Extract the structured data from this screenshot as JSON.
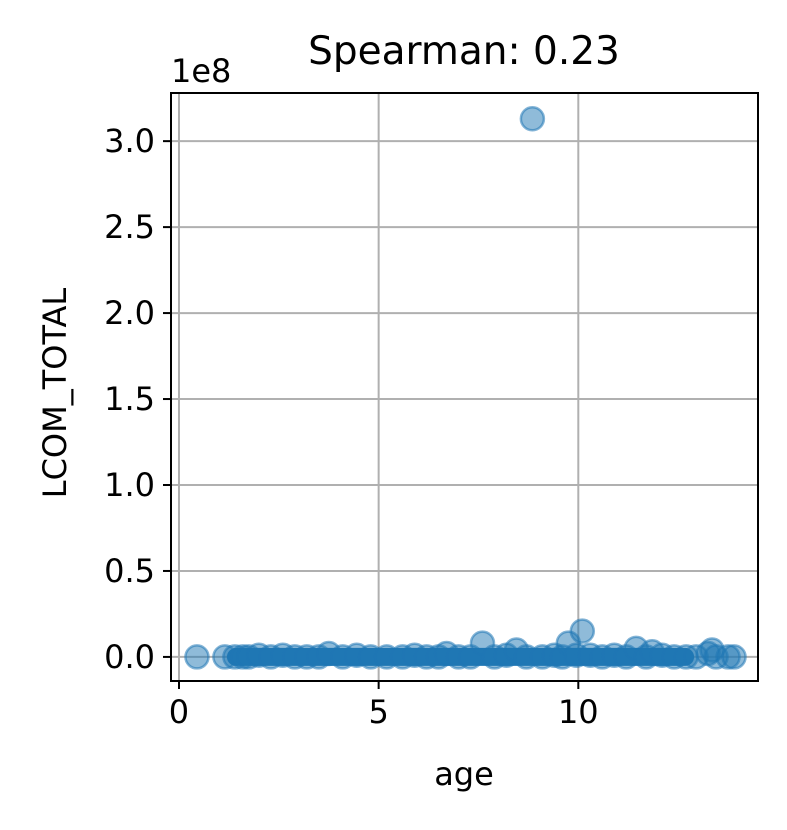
{
  "chart_data": {
    "type": "scatter",
    "title": "Spearman: 0.23",
    "xlabel": "age",
    "ylabel": "LCOM_TOTAL",
    "y_offset_text": "1e8",
    "xlim": [
      -0.2,
      14.5
    ],
    "ylim": [
      -0.14,
      3.28
    ],
    "xticks": [
      0,
      5,
      10
    ],
    "yticks": [
      0.0,
      0.5,
      1.0,
      1.5,
      2.0,
      2.5,
      3.0
    ],
    "xtick_labels": [
      "0",
      "5",
      "10"
    ],
    "ytick_labels": [
      "0.0",
      "0.5",
      "1.0",
      "1.5",
      "2.0",
      "2.5",
      "3.0"
    ],
    "grid": true,
    "color": "#1f77b4",
    "alpha": 0.5,
    "dense_band": {
      "x_start": 1.2,
      "x_end": 12.9,
      "y": 0.0
    },
    "series": [
      {
        "points": [
          [
            0.45,
            0.0
          ],
          [
            1.15,
            0.0
          ],
          [
            1.4,
            0.0
          ],
          [
            1.6,
            0.0
          ],
          [
            1.75,
            0.0
          ],
          [
            2.0,
            0.01
          ],
          [
            2.3,
            0.0
          ],
          [
            2.6,
            0.01
          ],
          [
            2.9,
            0.0
          ],
          [
            3.2,
            0.0
          ],
          [
            3.5,
            0.0
          ],
          [
            3.75,
            0.02
          ],
          [
            4.1,
            0.0
          ],
          [
            4.45,
            0.01
          ],
          [
            4.8,
            0.0
          ],
          [
            5.2,
            0.0
          ],
          [
            5.6,
            0.0
          ],
          [
            5.9,
            0.01
          ],
          [
            6.2,
            0.0
          ],
          [
            6.5,
            0.0
          ],
          [
            6.7,
            0.02
          ],
          [
            7.0,
            0.0
          ],
          [
            7.3,
            0.0
          ],
          [
            7.6,
            0.08
          ],
          [
            7.9,
            0.0
          ],
          [
            8.2,
            0.01
          ],
          [
            8.45,
            0.04
          ],
          [
            8.7,
            0.0
          ],
          [
            8.85,
            3.13
          ],
          [
            9.1,
            0.0
          ],
          [
            9.4,
            0.01
          ],
          [
            9.6,
            0.0
          ],
          [
            9.75,
            0.08
          ],
          [
            9.95,
            0.01
          ],
          [
            10.1,
            0.15
          ],
          [
            10.3,
            0.01
          ],
          [
            10.6,
            0.0
          ],
          [
            10.9,
            0.01
          ],
          [
            11.2,
            0.0
          ],
          [
            11.45,
            0.05
          ],
          [
            11.7,
            0.0
          ],
          [
            11.85,
            0.03
          ],
          [
            12.1,
            0.01
          ],
          [
            12.4,
            0.0
          ],
          [
            12.7,
            0.0
          ],
          [
            12.95,
            0.0
          ],
          [
            13.25,
            0.02
          ],
          [
            13.35,
            0.04
          ],
          [
            13.45,
            0.0
          ],
          [
            13.75,
            0.0
          ],
          [
            13.9,
            0.0
          ]
        ]
      }
    ]
  }
}
